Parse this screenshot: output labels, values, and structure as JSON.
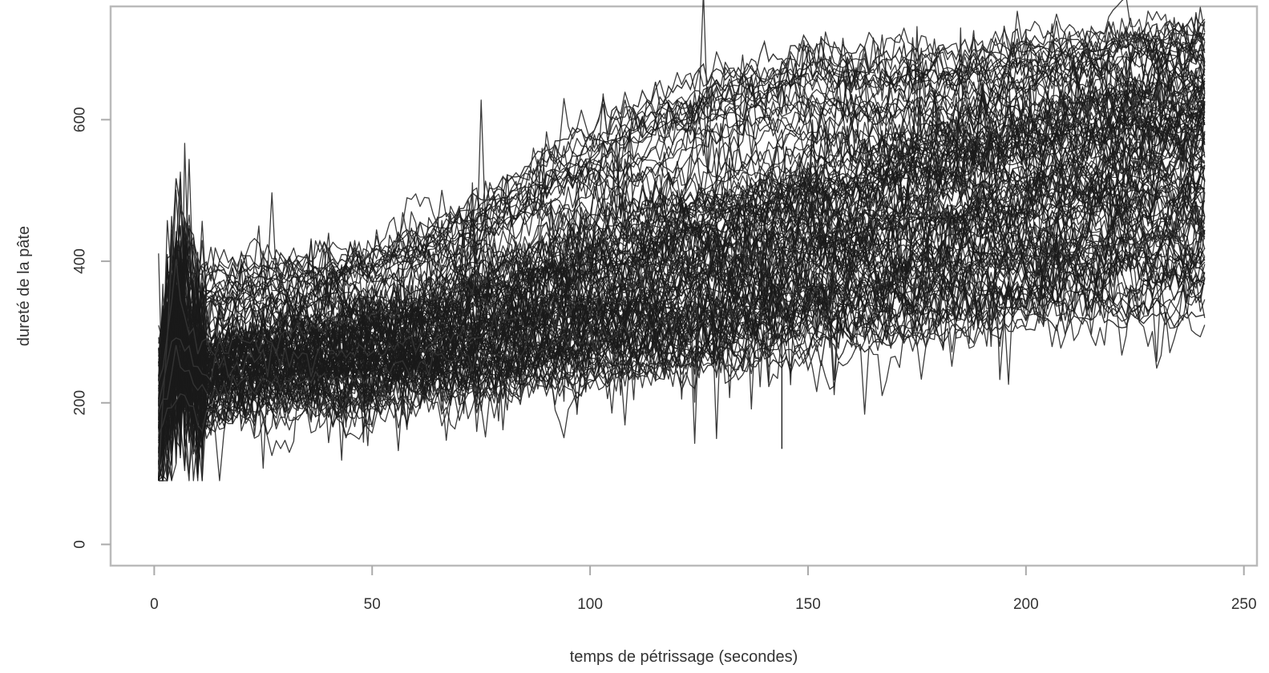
{
  "chart_data": {
    "type": "line",
    "title": "",
    "xlabel": "temps de pétrissage (secondes)",
    "ylabel": "dureté de la pâte",
    "xlim": [
      -10,
      253
    ],
    "ylim": [
      -30,
      760
    ],
    "x_ticks": [
      0,
      50,
      100,
      150,
      200,
      250
    ],
    "y_ticks": [
      0,
      200,
      400,
      600
    ],
    "x_tick_labels": [
      "0",
      "50",
      "100",
      "150",
      "200",
      "250"
    ],
    "y_tick_labels": [
      "0",
      "200",
      "400",
      "600"
    ],
    "grid": false,
    "legend": "none",
    "line_color": "#1a1a1a",
    "x_range_of_curves": [
      1,
      241
    ],
    "series_summary": [
      {
        "x": [
          1,
          5,
          10,
          25,
          50,
          75,
          100,
          125,
          150,
          175,
          200,
          225,
          241
        ],
        "y": [
          100,
          500,
          380,
          400,
          410,
          490,
          590,
          660,
          700,
          690,
          710,
          720,
          730
        ]
      },
      {
        "x": [
          1,
          5,
          10,
          25,
          50,
          75,
          100,
          125,
          150,
          175,
          200,
          225,
          241
        ],
        "y": [
          220,
          380,
          270,
          290,
          320,
          370,
          420,
          470,
          520,
          560,
          590,
          620,
          640
        ]
      },
      {
        "x": [
          1,
          5,
          10,
          25,
          50,
          75,
          100,
          125,
          150,
          175,
          200,
          225,
          241
        ],
        "y": [
          200,
          300,
          240,
          260,
          270,
          300,
          340,
          390,
          430,
          470,
          500,
          530,
          550
        ]
      },
      {
        "x": [
          1,
          5,
          10,
          25,
          50,
          75,
          100,
          125,
          150,
          175,
          200,
          225,
          241
        ],
        "y": [
          180,
          260,
          210,
          230,
          240,
          265,
          290,
          320,
          350,
          380,
          400,
          430,
          450
        ]
      },
      {
        "x": [
          1,
          5,
          10,
          25,
          50,
          75,
          100,
          125,
          150,
          175,
          200,
          225,
          241
        ],
        "y": [
          150,
          220,
          180,
          190,
          200,
          215,
          230,
          250,
          270,
          290,
          310,
          320,
          330
        ]
      }
    ]
  }
}
